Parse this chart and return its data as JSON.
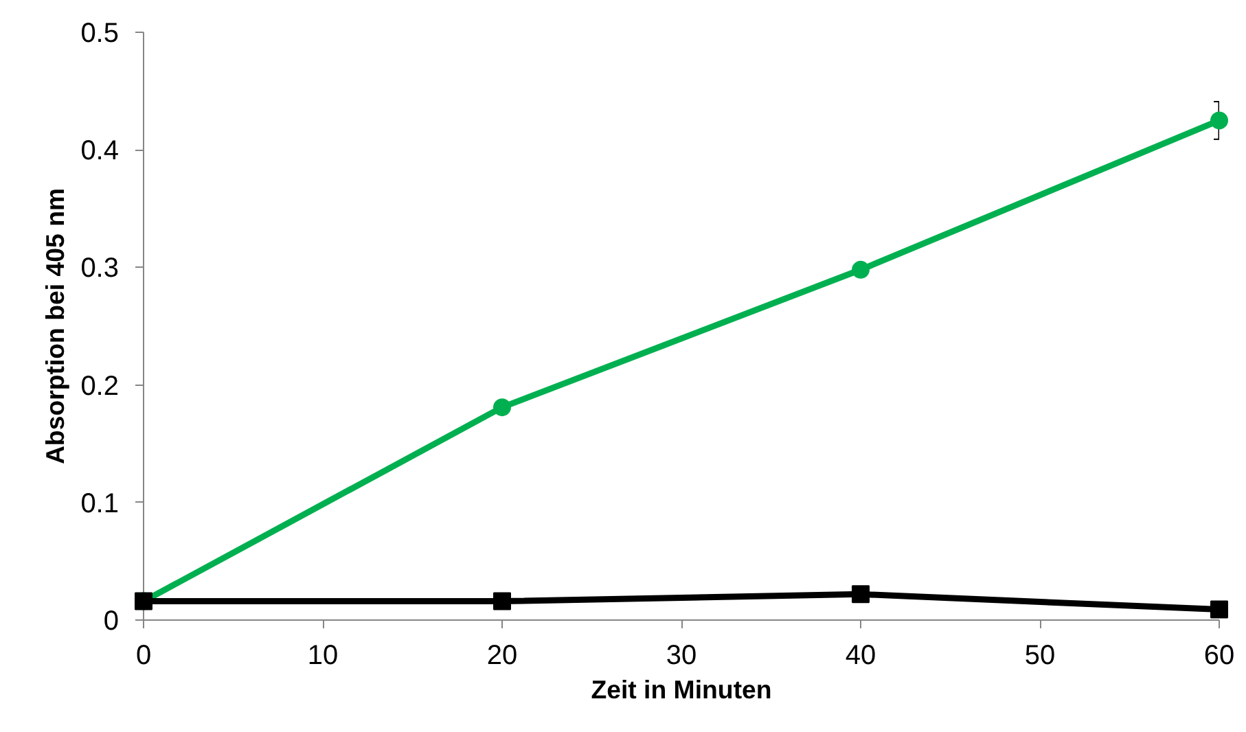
{
  "chart_data": {
    "type": "line",
    "xlabel": "Zeit in Minuten",
    "ylabel": "Absorption bei 405 nm",
    "x": [
      0,
      20,
      40,
      60
    ],
    "series": [
      {
        "color": "#00b050",
        "marker": "circle",
        "values": [
          0.016,
          0.181,
          0.298,
          0.425
        ],
        "errors": [
          null,
          null,
          null,
          0.016
        ]
      },
      {
        "color": "#000000",
        "marker": "square",
        "values": [
          0.016,
          0.016,
          0.022,
          0.009
        ]
      }
    ],
    "xlim": [
      0,
      60
    ],
    "xticks": [
      0,
      10,
      20,
      30,
      40,
      50,
      60
    ],
    "ylim": [
      0,
      0.5
    ],
    "yticks": [
      0,
      0.1,
      0.2,
      0.3,
      0.4,
      0.5
    ],
    "grid": false,
    "line_style": "solid"
  }
}
